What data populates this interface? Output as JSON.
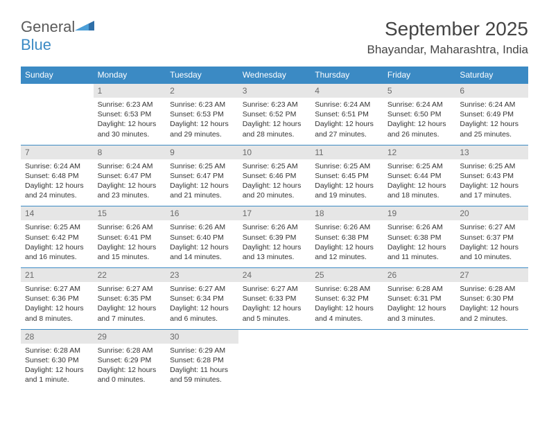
{
  "logo": {
    "word1": "General",
    "word2": "Blue"
  },
  "title": "September 2025",
  "location": "Bhayandar, Maharashtra, India",
  "colors": {
    "header_bg": "#3b8ac4",
    "header_text": "#ffffff",
    "daynum_bg": "#e6e6e6",
    "daynum_text": "#6a6a6a",
    "divider": "#3b8ac4"
  },
  "fonts": {
    "title_size": 28,
    "location_size": 17,
    "dayhead_size": 12,
    "body_size": 10.5
  },
  "daynames": [
    "Sunday",
    "Monday",
    "Tuesday",
    "Wednesday",
    "Thursday",
    "Friday",
    "Saturday"
  ],
  "weeks": [
    {
      "nums": [
        "",
        "1",
        "2",
        "3",
        "4",
        "5",
        "6"
      ],
      "cells": [
        null,
        {
          "sr": "Sunrise: 6:23 AM",
          "ss": "Sunset: 6:53 PM",
          "d1": "Daylight: 12 hours",
          "d2": "and 30 minutes."
        },
        {
          "sr": "Sunrise: 6:23 AM",
          "ss": "Sunset: 6:53 PM",
          "d1": "Daylight: 12 hours",
          "d2": "and 29 minutes."
        },
        {
          "sr": "Sunrise: 6:23 AM",
          "ss": "Sunset: 6:52 PM",
          "d1": "Daylight: 12 hours",
          "d2": "and 28 minutes."
        },
        {
          "sr": "Sunrise: 6:24 AM",
          "ss": "Sunset: 6:51 PM",
          "d1": "Daylight: 12 hours",
          "d2": "and 27 minutes."
        },
        {
          "sr": "Sunrise: 6:24 AM",
          "ss": "Sunset: 6:50 PM",
          "d1": "Daylight: 12 hours",
          "d2": "and 26 minutes."
        },
        {
          "sr": "Sunrise: 6:24 AM",
          "ss": "Sunset: 6:49 PM",
          "d1": "Daylight: 12 hours",
          "d2": "and 25 minutes."
        }
      ]
    },
    {
      "nums": [
        "7",
        "8",
        "9",
        "10",
        "11",
        "12",
        "13"
      ],
      "cells": [
        {
          "sr": "Sunrise: 6:24 AM",
          "ss": "Sunset: 6:48 PM",
          "d1": "Daylight: 12 hours",
          "d2": "and 24 minutes."
        },
        {
          "sr": "Sunrise: 6:24 AM",
          "ss": "Sunset: 6:47 PM",
          "d1": "Daylight: 12 hours",
          "d2": "and 23 minutes."
        },
        {
          "sr": "Sunrise: 6:25 AM",
          "ss": "Sunset: 6:47 PM",
          "d1": "Daylight: 12 hours",
          "d2": "and 21 minutes."
        },
        {
          "sr": "Sunrise: 6:25 AM",
          "ss": "Sunset: 6:46 PM",
          "d1": "Daylight: 12 hours",
          "d2": "and 20 minutes."
        },
        {
          "sr": "Sunrise: 6:25 AM",
          "ss": "Sunset: 6:45 PM",
          "d1": "Daylight: 12 hours",
          "d2": "and 19 minutes."
        },
        {
          "sr": "Sunrise: 6:25 AM",
          "ss": "Sunset: 6:44 PM",
          "d1": "Daylight: 12 hours",
          "d2": "and 18 minutes."
        },
        {
          "sr": "Sunrise: 6:25 AM",
          "ss": "Sunset: 6:43 PM",
          "d1": "Daylight: 12 hours",
          "d2": "and 17 minutes."
        }
      ]
    },
    {
      "nums": [
        "14",
        "15",
        "16",
        "17",
        "18",
        "19",
        "20"
      ],
      "cells": [
        {
          "sr": "Sunrise: 6:25 AM",
          "ss": "Sunset: 6:42 PM",
          "d1": "Daylight: 12 hours",
          "d2": "and 16 minutes."
        },
        {
          "sr": "Sunrise: 6:26 AM",
          "ss": "Sunset: 6:41 PM",
          "d1": "Daylight: 12 hours",
          "d2": "and 15 minutes."
        },
        {
          "sr": "Sunrise: 6:26 AM",
          "ss": "Sunset: 6:40 PM",
          "d1": "Daylight: 12 hours",
          "d2": "and 14 minutes."
        },
        {
          "sr": "Sunrise: 6:26 AM",
          "ss": "Sunset: 6:39 PM",
          "d1": "Daylight: 12 hours",
          "d2": "and 13 minutes."
        },
        {
          "sr": "Sunrise: 6:26 AM",
          "ss": "Sunset: 6:38 PM",
          "d1": "Daylight: 12 hours",
          "d2": "and 12 minutes."
        },
        {
          "sr": "Sunrise: 6:26 AM",
          "ss": "Sunset: 6:38 PM",
          "d1": "Daylight: 12 hours",
          "d2": "and 11 minutes."
        },
        {
          "sr": "Sunrise: 6:27 AM",
          "ss": "Sunset: 6:37 PM",
          "d1": "Daylight: 12 hours",
          "d2": "and 10 minutes."
        }
      ]
    },
    {
      "nums": [
        "21",
        "22",
        "23",
        "24",
        "25",
        "26",
        "27"
      ],
      "cells": [
        {
          "sr": "Sunrise: 6:27 AM",
          "ss": "Sunset: 6:36 PM",
          "d1": "Daylight: 12 hours",
          "d2": "and 8 minutes."
        },
        {
          "sr": "Sunrise: 6:27 AM",
          "ss": "Sunset: 6:35 PM",
          "d1": "Daylight: 12 hours",
          "d2": "and 7 minutes."
        },
        {
          "sr": "Sunrise: 6:27 AM",
          "ss": "Sunset: 6:34 PM",
          "d1": "Daylight: 12 hours",
          "d2": "and 6 minutes."
        },
        {
          "sr": "Sunrise: 6:27 AM",
          "ss": "Sunset: 6:33 PM",
          "d1": "Daylight: 12 hours",
          "d2": "and 5 minutes."
        },
        {
          "sr": "Sunrise: 6:28 AM",
          "ss": "Sunset: 6:32 PM",
          "d1": "Daylight: 12 hours",
          "d2": "and 4 minutes."
        },
        {
          "sr": "Sunrise: 6:28 AM",
          "ss": "Sunset: 6:31 PM",
          "d1": "Daylight: 12 hours",
          "d2": "and 3 minutes."
        },
        {
          "sr": "Sunrise: 6:28 AM",
          "ss": "Sunset: 6:30 PM",
          "d1": "Daylight: 12 hours",
          "d2": "and 2 minutes."
        }
      ]
    },
    {
      "nums": [
        "28",
        "29",
        "30",
        "",
        "",
        "",
        ""
      ],
      "cells": [
        {
          "sr": "Sunrise: 6:28 AM",
          "ss": "Sunset: 6:30 PM",
          "d1": "Daylight: 12 hours",
          "d2": "and 1 minute."
        },
        {
          "sr": "Sunrise: 6:28 AM",
          "ss": "Sunset: 6:29 PM",
          "d1": "Daylight: 12 hours",
          "d2": "and 0 minutes."
        },
        {
          "sr": "Sunrise: 6:29 AM",
          "ss": "Sunset: 6:28 PM",
          "d1": "Daylight: 11 hours",
          "d2": "and 59 minutes."
        },
        null,
        null,
        null,
        null
      ]
    }
  ]
}
